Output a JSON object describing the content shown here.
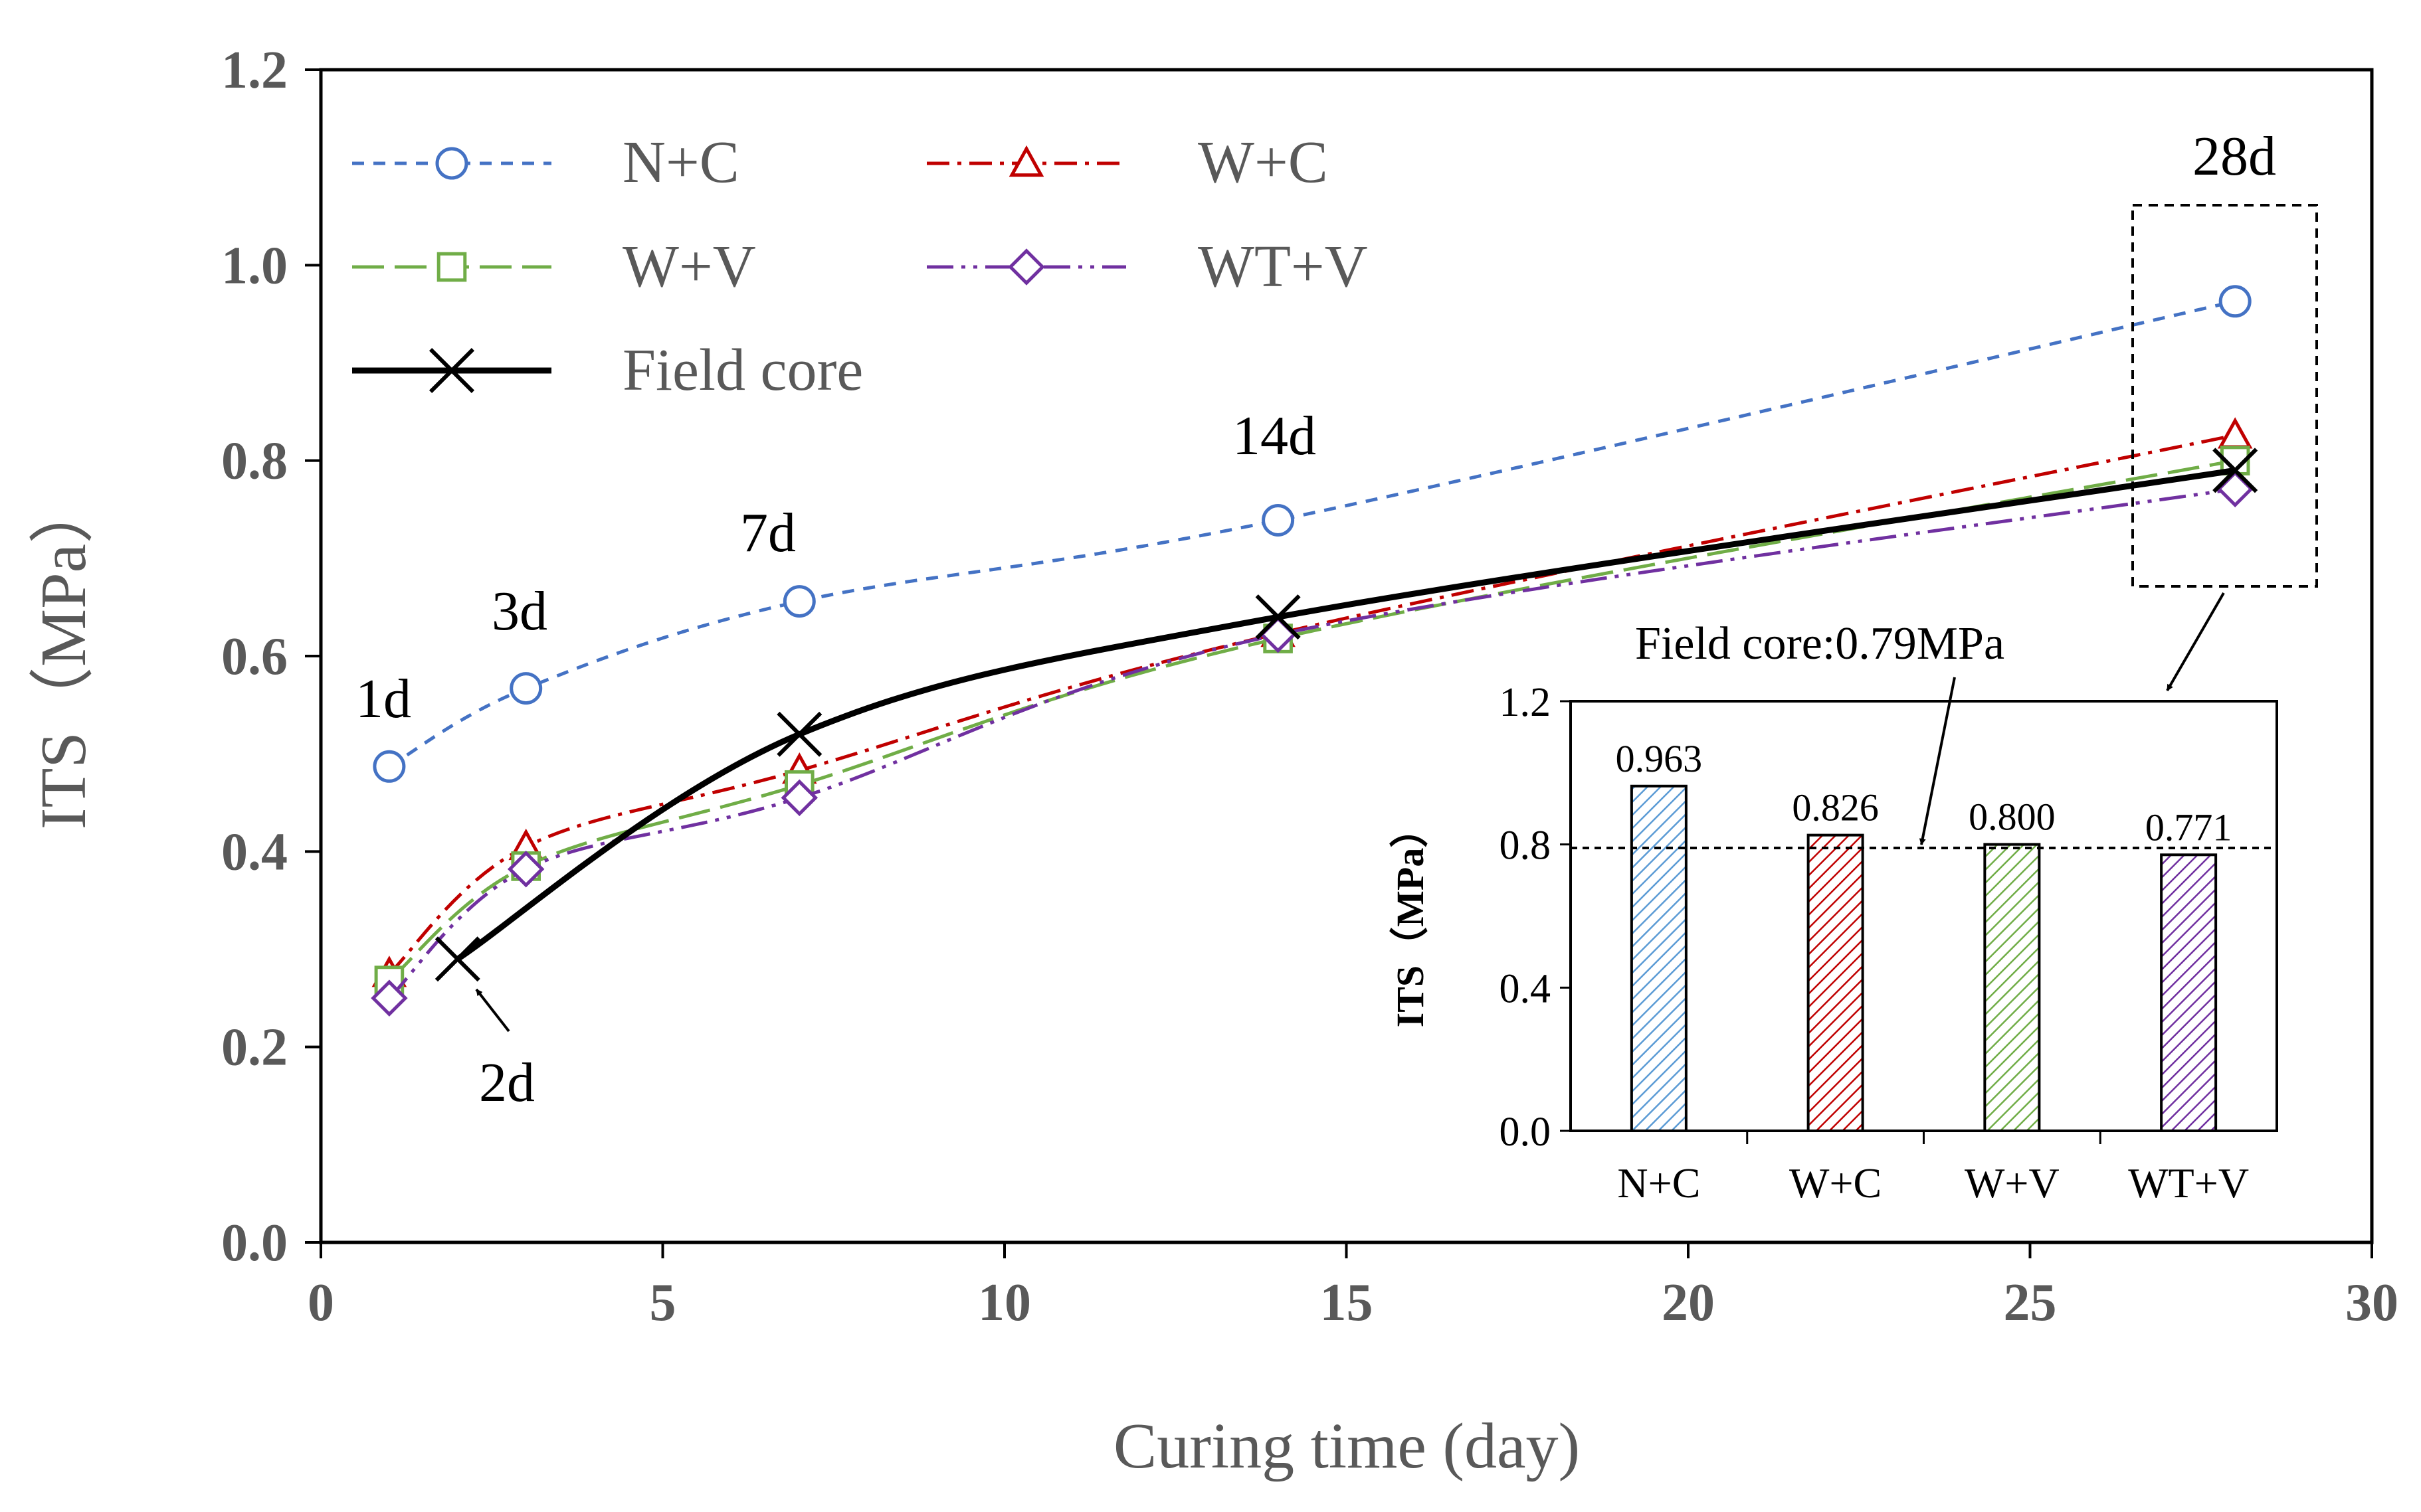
{
  "chart_data": [
    {
      "type": "line",
      "ylabel": "ITS（MPa）",
      "xlabel": "Curing time (day)",
      "xlim": [
        0,
        30
      ],
      "ylim": [
        0,
        1.2
      ],
      "xticks": [
        0,
        5,
        10,
        15,
        20,
        25,
        30
      ],
      "xtick_labels": [
        "0",
        "5",
        "10",
        "15",
        "20",
        "25",
        "30"
      ],
      "yticks": [
        0,
        0.2,
        0.4,
        0.6,
        0.8,
        1.0,
        1.2
      ],
      "ytick_labels": [
        "0.0",
        "0.2",
        "0.4",
        "0.6",
        "0.8",
        "1.0",
        "1.2"
      ],
      "series": [
        {
          "name": "N+C",
          "color": "#4472C4",
          "marker": "circle",
          "dash": "dashed",
          "x": [
            1,
            3,
            7,
            14,
            28
          ],
          "values": [
            0.487,
            0.567,
            0.656,
            0.739,
            0.963
          ]
        },
        {
          "name": "W+C",
          "color": "#C00000",
          "marker": "triangle",
          "dash": "dashdot",
          "x": [
            1,
            3,
            7,
            14,
            28
          ],
          "values": [
            0.275,
            0.405,
            0.483,
            0.623,
            0.826
          ]
        },
        {
          "name": "W+V",
          "color": "#70AD47",
          "marker": "square",
          "dash": "longdash",
          "x": [
            1,
            3,
            7,
            14,
            28
          ],
          "values": [
            0.268,
            0.385,
            0.468,
            0.618,
            0.8
          ]
        },
        {
          "name": "WT+V",
          "color": "#7030A0",
          "marker": "diamond",
          "dash": "dashdotdot",
          "x": [
            1,
            3,
            7,
            14,
            28
          ],
          "values": [
            0.25,
            0.382,
            0.455,
            0.622,
            0.771
          ]
        },
        {
          "name": "Field core",
          "color": "#000000",
          "marker": "x",
          "dash": "solid",
          "x": [
            2,
            7,
            14,
            28
          ],
          "values": [
            0.29,
            0.52,
            0.64,
            0.79
          ]
        }
      ],
      "annotations": [
        {
          "text": "1d",
          "x": 1,
          "y": 0.487
        },
        {
          "text": "3d",
          "x": 3,
          "y": 0.567
        },
        {
          "text": "7d",
          "x": 7,
          "y": 0.656
        },
        {
          "text": "14d",
          "x": 14,
          "y": 0.739
        },
        {
          "text": "28d",
          "x": 28,
          "y": 0.963
        },
        {
          "text": "2d",
          "x": 2,
          "y": 0.29
        }
      ]
    },
    {
      "type": "bar",
      "inset": true,
      "ylabel": "ITS（MPa）",
      "categories": [
        "N+C",
        "W+C",
        "W+V",
        "WT+V"
      ],
      "values": [
        0.963,
        0.826,
        0.8,
        0.771
      ],
      "value_labels": [
        "0.963",
        "0.826",
        "0.800",
        "0.771"
      ],
      "colors": [
        "#5B9BD5",
        "#C00000",
        "#70AD47",
        "#7030A0"
      ],
      "ylim": [
        0,
        1.2
      ],
      "yticks": [
        0,
        0.4,
        0.8,
        1.2
      ],
      "ytick_labels": [
        "0.0",
        "0.4",
        "0.8",
        "1.2"
      ],
      "reference_line": {
        "value": 0.79,
        "label": "Field core:0.79MPa"
      }
    }
  ]
}
